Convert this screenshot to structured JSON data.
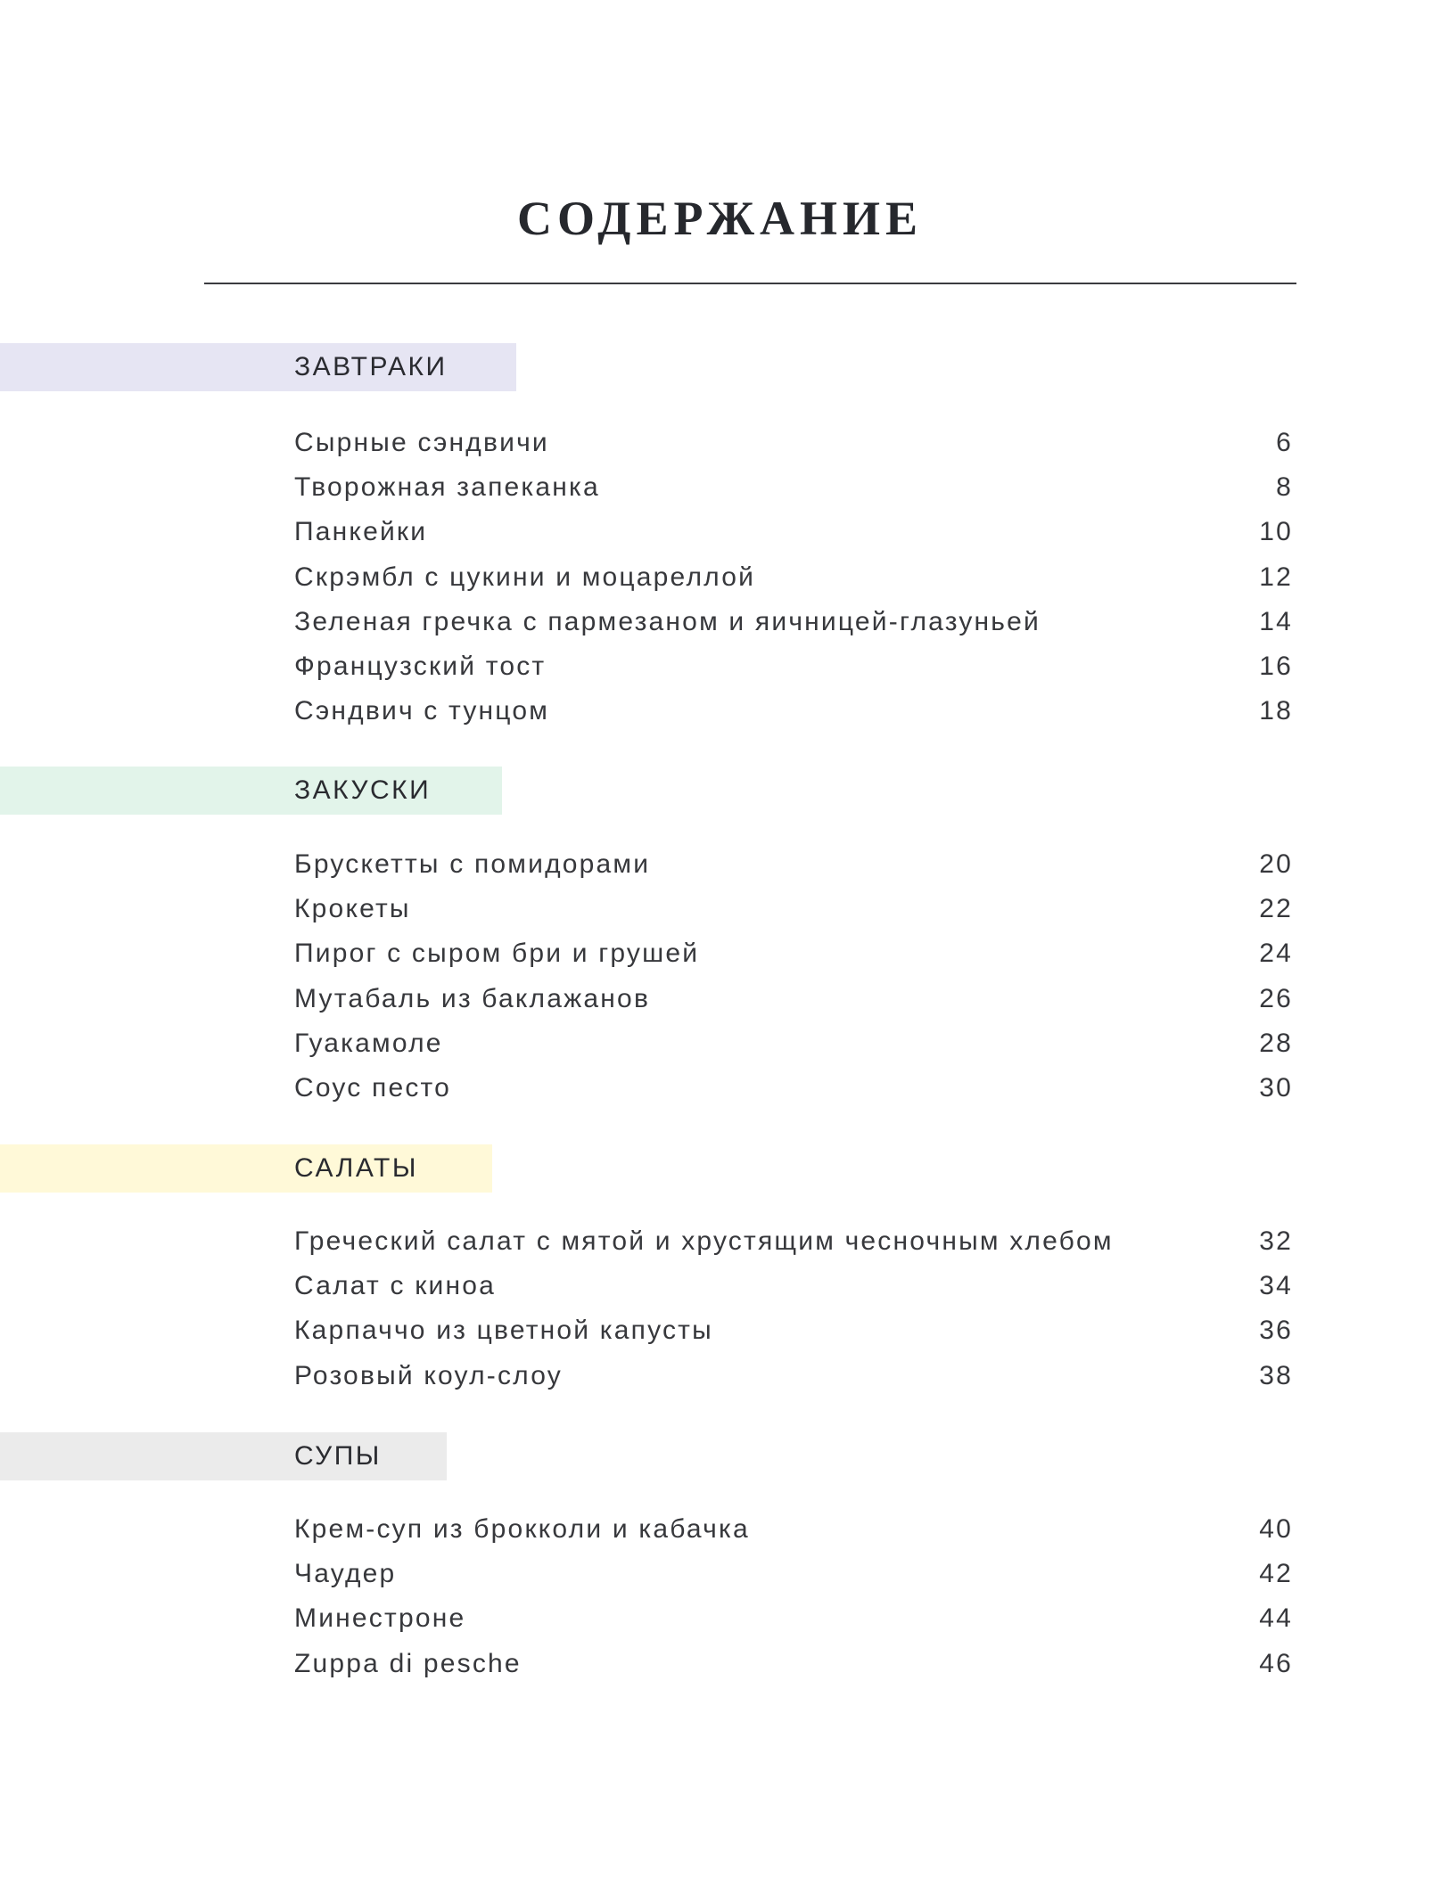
{
  "title": "СОДЕРЖАНИЕ",
  "sections": [
    {
      "heading": "ЗАВТРАКИ",
      "color": "#e6e5f3",
      "items": [
        {
          "name": "Сырные сэндвичи",
          "page": "6"
        },
        {
          "name": "Творожная запеканка",
          "page": "8"
        },
        {
          "name": "Панкейки",
          "page": "10"
        },
        {
          "name": "Скрэмбл с цукини и моцареллой",
          "page": "12"
        },
        {
          "name": "Зеленая гречка с пармезаном и яичницей-глазуньей",
          "page": "14"
        },
        {
          "name": "Французский тост",
          "page": "16"
        },
        {
          "name": "Сэндвич с тунцом",
          "page": "18"
        }
      ]
    },
    {
      "heading": "ЗАКУСКИ",
      "color": "#e2f4ea",
      "items": [
        {
          "name": "Брускетты с помидорами",
          "page": "20"
        },
        {
          "name": "Крокеты",
          "page": "22"
        },
        {
          "name": "Пирог с сыром бри и грушей",
          "page": "24"
        },
        {
          "name": "Мутабаль из баклажанов",
          "page": "26"
        },
        {
          "name": "Гуакамоле",
          "page": "28"
        },
        {
          "name": "Соус песто",
          "page": "30"
        }
      ]
    },
    {
      "heading": "САЛАТЫ",
      "color": "#fff9d8",
      "items": [
        {
          "name": "Греческий салат с мятой и хрустящим чесночным хлебом",
          "page": "32"
        },
        {
          "name": "Салат с киноа",
          "page": "34"
        },
        {
          "name": "Карпаччо из цветной капусты",
          "page": "36"
        },
        {
          "name": "Розовый коул-слоу",
          "page": "38"
        }
      ]
    },
    {
      "heading": "СУПЫ",
      "color": "#ebebeb",
      "items": [
        {
          "name": "Крем-суп из брокколи и кабачка",
          "page": "40"
        },
        {
          "name": "Чаудер",
          "page": "42"
        },
        {
          "name": "Минестроне",
          "page": "44"
        },
        {
          "name": "Zuppa di pesche",
          "page": "46"
        }
      ]
    }
  ]
}
